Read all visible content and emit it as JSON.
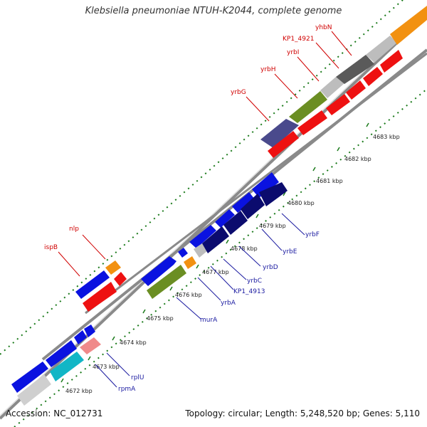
{
  "title": "Klebsiella pneumoniae NTUH-K2044, complete genome",
  "footer": {
    "accession": "Accession: NC_012731",
    "summary": "Topology: circular; Length: 5,248,520 bp; Genes: 5,110"
  },
  "ticks": [
    "4672 kbp",
    "4673 kbp",
    "4674 kbp",
    "4675 kbp",
    "4676 kbp",
    "4677 kbp",
    "4678 kbp",
    "4679 kbp",
    "4680 kbp",
    "4681 kbp",
    "4682 kbp",
    "4683 kbp"
  ],
  "gene_labels": {
    "forward": [
      "yhbN",
      "KP1_4921",
      "yrbI",
      "yrbH",
      "yrbG",
      "nlp",
      "ispB"
    ],
    "reverse": [
      "yrbF",
      "yrbE",
      "yrbD",
      "yrbC",
      "KP1_4913",
      "yrbA",
      "murA",
      "rplU",
      "rpmA"
    ]
  },
  "colors": {
    "forward_label": "#d00000",
    "reverse_label": "#1a1aa0",
    "backbone": "#8a8a8a",
    "tick": "#1a7a1a"
  }
}
